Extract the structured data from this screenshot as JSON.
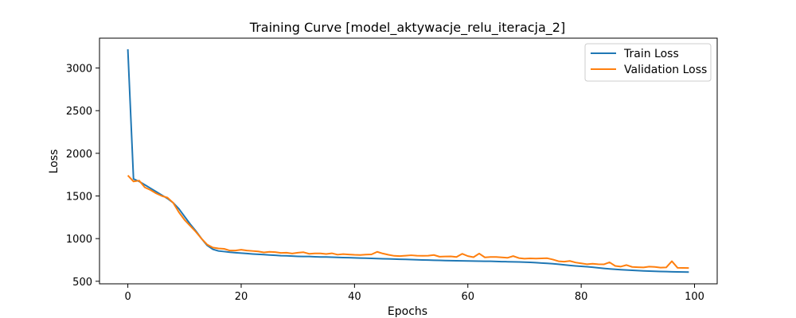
{
  "chart_data": {
    "type": "line",
    "title": "Training Curve [model_aktywacje_relu_iteracja_2]",
    "xlabel": "Epochs",
    "ylabel": "Loss",
    "xlim": [
      -5,
      104
    ],
    "ylim": [
      470,
      3350
    ],
    "xticks": [
      0,
      20,
      40,
      60,
      80,
      100
    ],
    "yticks": [
      500,
      1000,
      1500,
      2000,
      2500,
      3000
    ],
    "grid": false,
    "legend_position": "top-right",
    "series": [
      {
        "name": "Train Loss",
        "color": "#1f77b4",
        "values": [
          3220,
          1700,
          1670,
          1630,
          1590,
          1550,
          1510,
          1470,
          1420,
          1350,
          1260,
          1170,
          1090,
          1000,
          920,
          875,
          855,
          848,
          840,
          835,
          830,
          825,
          820,
          816,
          812,
          808,
          804,
          800,
          798,
          795,
          792,
          790,
          790,
          787,
          785,
          785,
          782,
          780,
          778,
          776,
          774,
          772,
          770,
          768,
          766,
          764,
          762,
          760,
          758,
          756,
          754,
          752,
          750,
          748,
          746,
          745,
          743,
          741,
          740,
          739,
          738,
          737,
          736,
          735,
          734,
          732,
          730,
          729,
          728,
          726,
          724,
          722,
          718,
          714,
          710,
          705,
          700,
          693,
          686,
          680,
          675,
          670,
          665,
          658,
          651,
          645,
          640,
          636,
          632,
          628,
          625,
          622,
          619,
          617,
          615,
          613,
          611,
          610,
          609,
          608
        ]
      },
      {
        "name": "Validation Loss",
        "color": "#ff7f0e",
        "values": [
          1740,
          1670,
          1680,
          1600,
          1570,
          1530,
          1500,
          1480,
          1420,
          1310,
          1220,
          1150,
          1080,
          1000,
          930,
          895,
          885,
          880,
          860,
          860,
          870,
          860,
          855,
          850,
          838,
          845,
          842,
          832,
          835,
          825,
          835,
          840,
          822,
          826,
          826,
          820,
          828,
          812,
          818,
          814,
          810,
          808,
          812,
          815,
          845,
          825,
          810,
          798,
          795,
          800,
          805,
          800,
          798,
          800,
          808,
          788,
          790,
          792,
          785,
          822,
          795,
          782,
          825,
          780,
          785,
          785,
          780,
          775,
          795,
          772,
          765,
          768,
          766,
          768,
          770,
          755,
          735,
          730,
          738,
          720,
          710,
          700,
          705,
          700,
          698,
          722,
          680,
          672,
          690,
          668,
          665,
          662,
          672,
          668,
          660,
          662,
          735,
          658,
          656,
          655
        ]
      }
    ]
  }
}
